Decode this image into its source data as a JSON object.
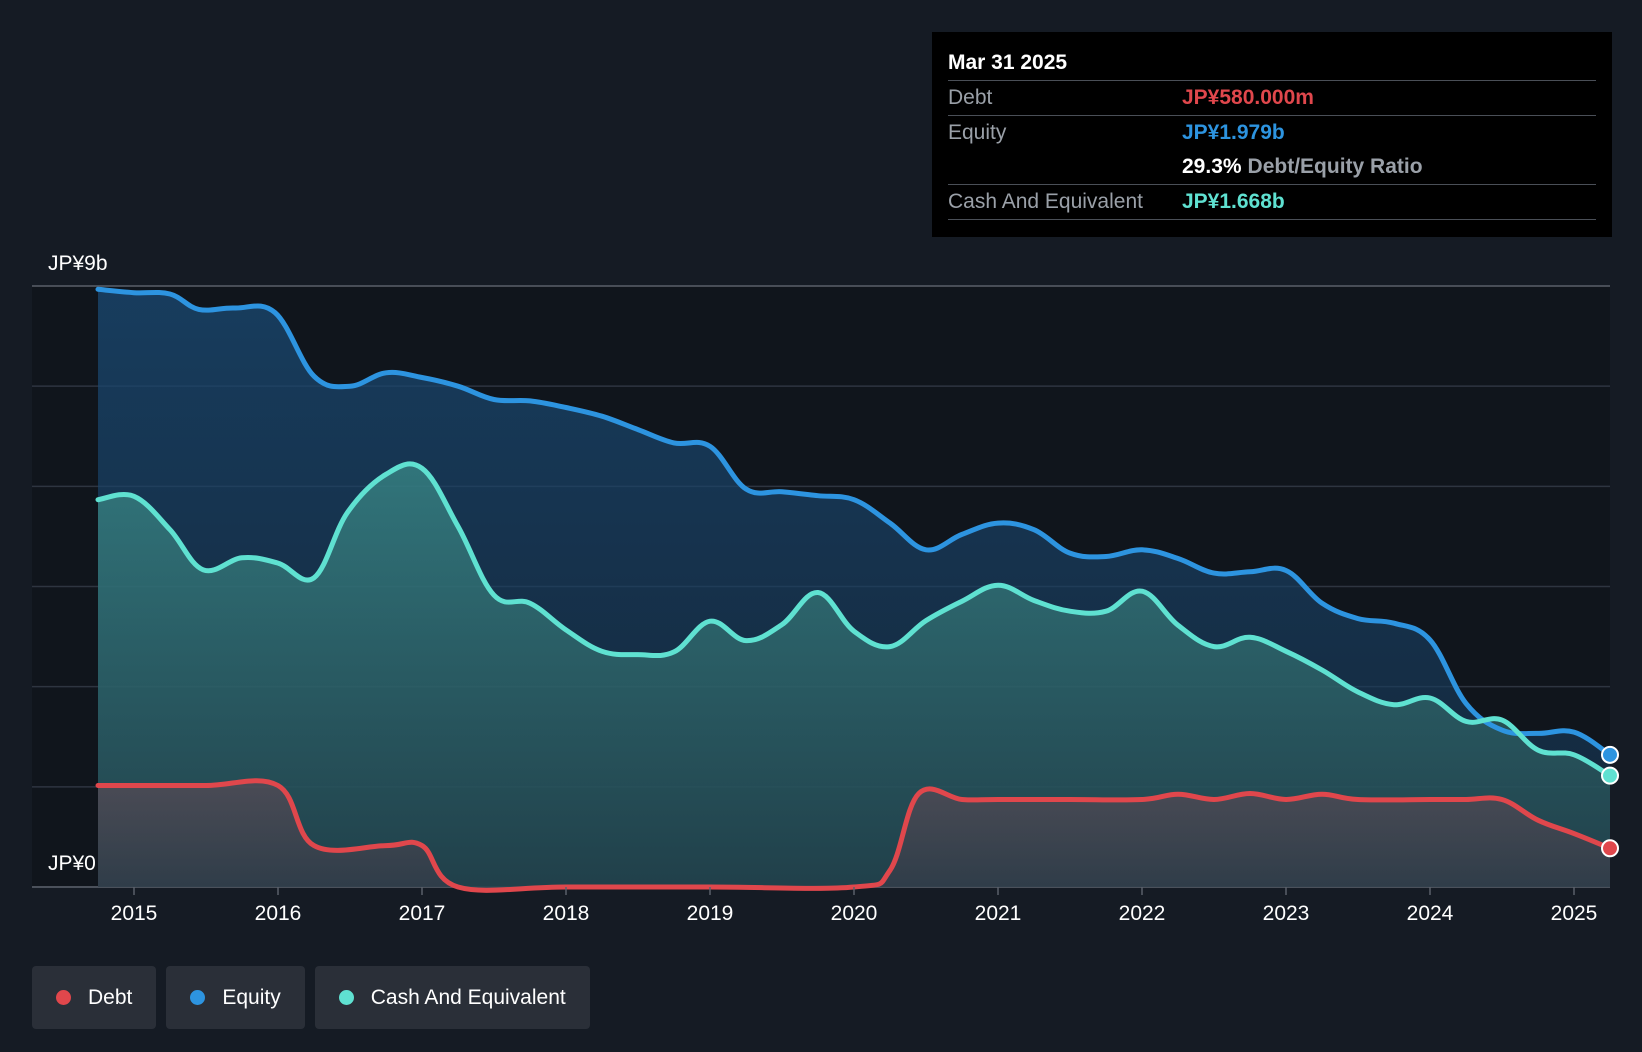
{
  "chart_data": {
    "type": "line",
    "title": "",
    "y_axis": {
      "label_top": "JP¥9b",
      "label_bottom": "JP¥0",
      "ylim": [
        0,
        9000
      ]
    },
    "x_ticks": [
      "2015",
      "2016",
      "2017",
      "2018",
      "2019",
      "2020",
      "2021",
      "2022",
      "2023",
      "2024",
      "2025"
    ],
    "x_range": [
      2014.6,
      2025.35
    ],
    "series": [
      {
        "name": "Equity",
        "color": "#2d94e0",
        "points": [
          [
            2014.75,
            8950
          ],
          [
            2015.0,
            8900
          ],
          [
            2015.25,
            8880
          ],
          [
            2015.45,
            8650
          ],
          [
            2015.7,
            8670
          ],
          [
            2015.98,
            8600
          ],
          [
            2016.25,
            7650
          ],
          [
            2016.5,
            7500
          ],
          [
            2016.75,
            7700
          ],
          [
            2017.0,
            7630
          ],
          [
            2017.25,
            7500
          ],
          [
            2017.5,
            7300
          ],
          [
            2017.75,
            7280
          ],
          [
            2018.0,
            7180
          ],
          [
            2018.25,
            7050
          ],
          [
            2018.5,
            6850
          ],
          [
            2018.75,
            6650
          ],
          [
            2019.0,
            6600
          ],
          [
            2019.25,
            5960
          ],
          [
            2019.5,
            5920
          ],
          [
            2019.75,
            5860
          ],
          [
            2020.0,
            5800
          ],
          [
            2020.25,
            5450
          ],
          [
            2020.5,
            5050
          ],
          [
            2020.75,
            5280
          ],
          [
            2021.0,
            5450
          ],
          [
            2021.25,
            5350
          ],
          [
            2021.5,
            5000
          ],
          [
            2021.75,
            4950
          ],
          [
            2022.0,
            5050
          ],
          [
            2022.25,
            4920
          ],
          [
            2022.5,
            4700
          ],
          [
            2022.75,
            4720
          ],
          [
            2023.0,
            4740
          ],
          [
            2023.25,
            4250
          ],
          [
            2023.5,
            4020
          ],
          [
            2023.75,
            3950
          ],
          [
            2024.0,
            3700
          ],
          [
            2024.25,
            2750
          ],
          [
            2024.5,
            2350
          ],
          [
            2024.75,
            2300
          ],
          [
            2025.0,
            2320
          ],
          [
            2025.25,
            1979
          ]
        ]
      },
      {
        "name": "Cash And Equivalent",
        "color": "#5fe1d1",
        "points": [
          [
            2014.75,
            5800
          ],
          [
            2015.0,
            5850
          ],
          [
            2015.25,
            5350
          ],
          [
            2015.48,
            4750
          ],
          [
            2015.75,
            4930
          ],
          [
            2016.0,
            4850
          ],
          [
            2016.25,
            4630
          ],
          [
            2016.48,
            5600
          ],
          [
            2016.75,
            6180
          ],
          [
            2017.0,
            6270
          ],
          [
            2017.25,
            5400
          ],
          [
            2017.5,
            4370
          ],
          [
            2017.75,
            4250
          ],
          [
            2018.0,
            3850
          ],
          [
            2018.25,
            3530
          ],
          [
            2018.5,
            3480
          ],
          [
            2018.75,
            3520
          ],
          [
            2019.0,
            3980
          ],
          [
            2019.25,
            3690
          ],
          [
            2019.5,
            3930
          ],
          [
            2019.75,
            4410
          ],
          [
            2020.0,
            3830
          ],
          [
            2020.25,
            3600
          ],
          [
            2020.5,
            3990
          ],
          [
            2020.75,
            4280
          ],
          [
            2021.0,
            4520
          ],
          [
            2021.25,
            4290
          ],
          [
            2021.5,
            4130
          ],
          [
            2021.75,
            4130
          ],
          [
            2022.0,
            4430
          ],
          [
            2022.25,
            3920
          ],
          [
            2022.5,
            3600
          ],
          [
            2022.75,
            3740
          ],
          [
            2023.0,
            3530
          ],
          [
            2023.25,
            3250
          ],
          [
            2023.5,
            2920
          ],
          [
            2023.75,
            2730
          ],
          [
            2024.0,
            2830
          ],
          [
            2024.25,
            2480
          ],
          [
            2024.5,
            2500
          ],
          [
            2024.75,
            2050
          ],
          [
            2025.0,
            1980
          ],
          [
            2025.25,
            1668
          ]
        ]
      },
      {
        "name": "Debt",
        "color": "#e0474c",
        "points": [
          [
            2014.75,
            1520
          ],
          [
            2015.0,
            1520
          ],
          [
            2015.5,
            1520
          ],
          [
            2016.0,
            1520
          ],
          [
            2016.25,
            620
          ],
          [
            2016.75,
            620
          ],
          [
            2017.0,
            620
          ],
          [
            2017.25,
            0
          ],
          [
            2018.0,
            0
          ],
          [
            2019.0,
            0
          ],
          [
            2020.0,
            0
          ],
          [
            2020.25,
            250
          ],
          [
            2020.45,
            1400
          ],
          [
            2020.75,
            1310
          ],
          [
            2021.0,
            1310
          ],
          [
            2021.5,
            1310
          ],
          [
            2022.0,
            1310
          ],
          [
            2022.25,
            1390
          ],
          [
            2022.5,
            1310
          ],
          [
            2022.75,
            1400
          ],
          [
            2023.0,
            1310
          ],
          [
            2023.25,
            1390
          ],
          [
            2023.5,
            1310
          ],
          [
            2024.0,
            1310
          ],
          [
            2024.25,
            1310
          ],
          [
            2024.5,
            1310
          ],
          [
            2024.75,
            1000
          ],
          [
            2025.0,
            800
          ],
          [
            2025.25,
            580
          ]
        ]
      }
    ]
  },
  "tooltip": {
    "date": "Mar 31 2025",
    "debt_label": "Debt",
    "debt_value": "JP¥580.000m",
    "equity_label": "Equity",
    "equity_value": "JP¥1.979b",
    "ratio_value": "29.3%",
    "ratio_label": "Debt/Equity Ratio",
    "cash_label": "Cash And Equivalent",
    "cash_value": "JP¥1.668b"
  },
  "legend": {
    "debt": "Debt",
    "equity": "Equity",
    "cash": "Cash And Equivalent"
  },
  "colors": {
    "debt": "#e0474c",
    "equity": "#2d94e0",
    "cash": "#5fe1d1",
    "background": "#151b24"
  }
}
